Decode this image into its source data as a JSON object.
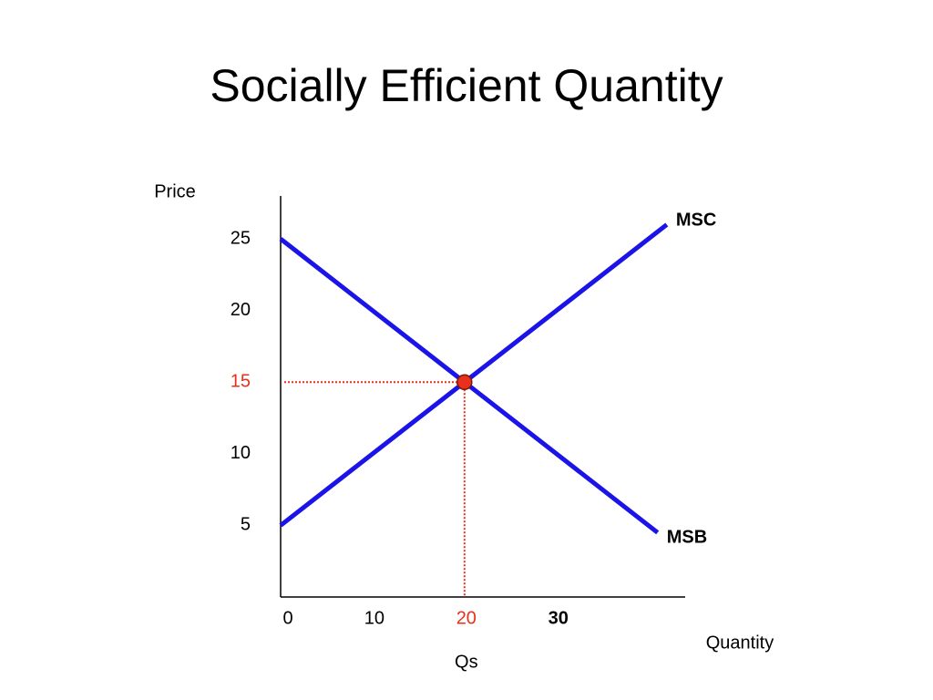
{
  "chart_data": {
    "type": "line",
    "title": "Socially Efficient Quantity",
    "ylabel": "Price",
    "xlabel": "Quantity",
    "xlim": [
      0,
      44
    ],
    "ylim": [
      0,
      28
    ],
    "xticks": [
      0,
      10,
      20,
      30
    ],
    "yticks": [
      5,
      10,
      15,
      20,
      25
    ],
    "series": [
      {
        "name": "MSC",
        "color": "#1a14e8",
        "x": [
          0,
          42
        ],
        "values": [
          5,
          26
        ]
      },
      {
        "name": "MSB",
        "color": "#1a14e8",
        "x": [
          0,
          41
        ],
        "values": [
          25,
          4.5
        ]
      }
    ],
    "equilibrium": {
      "x": 20,
      "y": 15,
      "label": "Qs",
      "color": "#e8301c"
    }
  }
}
